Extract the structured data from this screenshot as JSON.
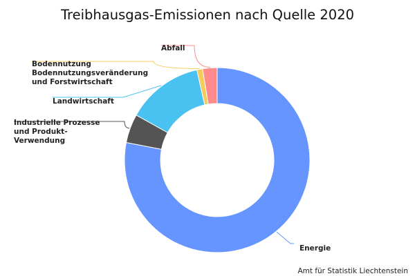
{
  "chart_data": {
    "type": "pie",
    "title": "Treibhausgas-Emissionen nach Quelle 2020",
    "credit": "Amt für Statistik Liechtenstein",
    "donut": true,
    "categories": [
      "Energie",
      "Industrielle Prozesse und Produkt-Verwendung",
      "Landwirtschaft",
      "Bodennutzung Bodennutzungsveränderung und Forstwirtschaft",
      "Abfall"
    ],
    "values": [
      77.5,
      5.0,
      13.3,
      1.0,
      2.5
    ],
    "label_lines": [
      [
        "Energie"
      ],
      [
        "Industrielle Prozesse",
        "und Produkt-",
        "Verwendung"
      ],
      [
        "Landwirtschaft"
      ],
      [
        "Bodennutzung",
        "Bodennutzungsveränderung",
        "und Forstwirtschaft"
      ],
      [
        "Abfall"
      ]
    ],
    "colors": [
      "#6695ff",
      "#545454",
      "#49c1f1",
      "#f5cb5c",
      "#ff8a8a"
    ]
  }
}
